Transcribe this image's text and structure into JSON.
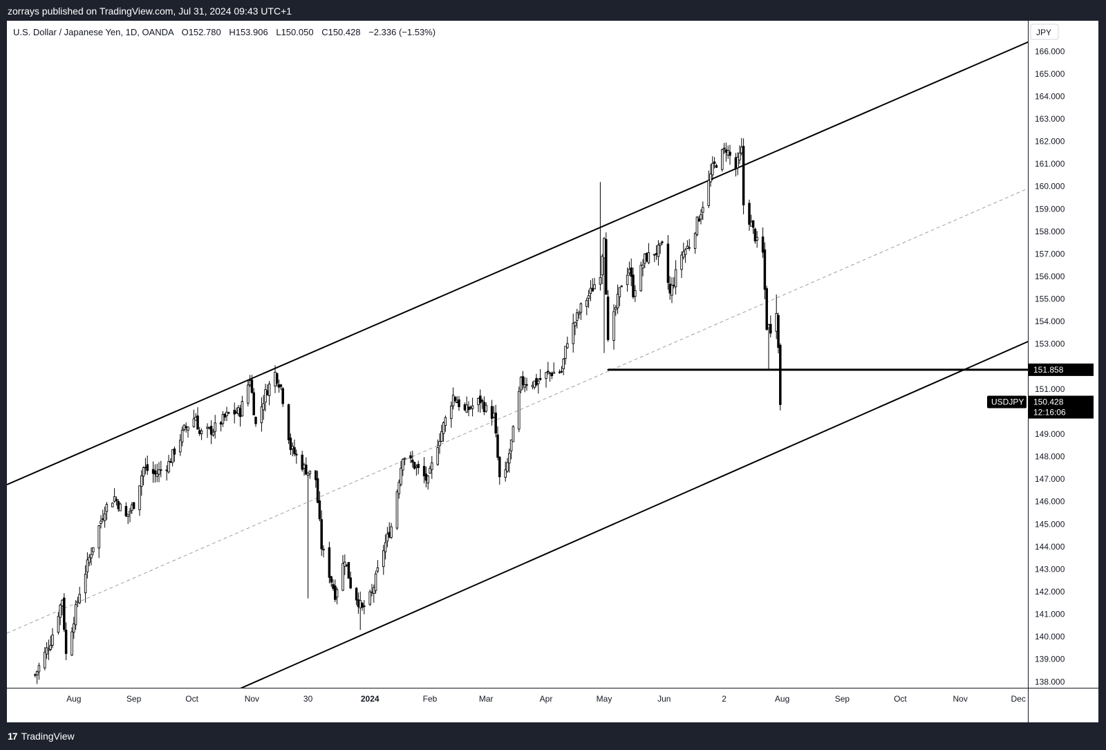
{
  "publisher_line": "zorrays published on TradingView.com, Jul 31, 2024 09:43 UTC+1",
  "footer": {
    "logo": "17",
    "brand": "TradingView"
  },
  "legend": {
    "symbol_desc": "U.S. Dollar / Japanese Yen, 1D, OANDA",
    "open": "O152.780",
    "high": "H153.906",
    "low": "L150.050",
    "close": "C150.428",
    "change": "−2.336 (−1.53%)"
  },
  "currency": "JPY",
  "price_labels": {
    "level": "151.858",
    "symbol": "USDJPY",
    "last": "150.428",
    "countdown": "12:16:06"
  },
  "colors": {
    "background": "#ffffff",
    "frame": "#1e222d",
    "candle": "#000000",
    "channel": "#000000",
    "midline": "#9e9e9e"
  },
  "chart_data": {
    "type": "candlestick",
    "title": "U.S. Dollar / Japanese Yen, 1D, OANDA",
    "ylim": [
      137.7,
      166.9
    ],
    "y_ticks": [
      "138.000",
      "139.000",
      "140.000",
      "141.000",
      "142.000",
      "143.000",
      "144.000",
      "145.000",
      "146.000",
      "147.000",
      "148.000",
      "149.000",
      "150.000",
      "151.000",
      "152.000",
      "153.000",
      "154.000",
      "155.000",
      "156.000",
      "157.000",
      "158.000",
      "159.000",
      "160.000",
      "161.000",
      "162.000",
      "163.000",
      "164.000",
      "165.000",
      "166.000"
    ],
    "x_ticks": [
      {
        "label": "Aug",
        "date": "2023-08-01",
        "bold": false
      },
      {
        "label": "Sep",
        "date": "2023-09-01",
        "bold": false
      },
      {
        "label": "Oct",
        "date": "2023-10-01",
        "bold": false
      },
      {
        "label": "Nov",
        "date": "2023-11-01",
        "bold": false
      },
      {
        "label": "30",
        "date": "2023-11-30",
        "bold": false
      },
      {
        "label": "2024",
        "date": "2024-01-01",
        "bold": true
      },
      {
        "label": "Feb",
        "date": "2024-02-01",
        "bold": false
      },
      {
        "label": "Mar",
        "date": "2024-03-01",
        "bold": false
      },
      {
        "label": "Apr",
        "date": "2024-04-01",
        "bold": false
      },
      {
        "label": "May",
        "date": "2024-05-01",
        "bold": false
      },
      {
        "label": "Jun",
        "date": "2024-06-01",
        "bold": false
      },
      {
        "label": "2",
        "date": "2024-07-02",
        "bold": false
      },
      {
        "label": "Aug",
        "date": "2024-08-01",
        "bold": false
      },
      {
        "label": "Sep",
        "date": "2024-09-01",
        "bold": false
      },
      {
        "label": "Oct",
        "date": "2024-10-01",
        "bold": false
      },
      {
        "label": "Nov",
        "date": "2024-11-01",
        "bold": false
      },
      {
        "label": "Dec",
        "date": "2024-12-01",
        "bold": false
      }
    ],
    "price_path": [
      [
        "2023-07-12",
        138.3
      ],
      [
        "2023-07-20",
        139.8
      ],
      [
        "2023-07-26",
        141.7
      ],
      [
        "2023-07-28",
        139.2
      ],
      [
        "2023-08-04",
        142.0
      ],
      [
        "2023-08-10",
        143.8
      ],
      [
        "2023-08-17",
        145.7
      ],
      [
        "2023-08-22",
        146.2
      ],
      [
        "2023-08-28",
        145.3
      ],
      [
        "2023-09-01",
        145.9
      ],
      [
        "2023-09-06",
        147.5
      ],
      [
        "2023-09-12",
        147.2
      ],
      [
        "2023-09-19",
        147.7
      ],
      [
        "2023-09-27",
        149.2
      ],
      [
        "2023-10-03",
        149.8
      ],
      [
        "2023-10-05",
        149.0
      ],
      [
        "2023-10-12",
        149.2
      ],
      [
        "2023-10-20",
        149.9
      ],
      [
        "2023-10-26",
        150.0
      ],
      [
        "2023-10-31",
        151.5
      ],
      [
        "2023-11-03",
        149.4
      ],
      [
        "2023-11-08",
        150.8
      ],
      [
        "2023-11-13",
        151.7
      ],
      [
        "2023-11-16",
        151.1
      ],
      [
        "2023-11-21",
        148.4
      ],
      [
        "2023-11-28",
        147.5
      ],
      [
        "2023-12-04",
        147.0
      ],
      [
        "2023-12-07",
        144.0
      ],
      [
        "2023-12-14",
        141.9
      ],
      [
        "2023-12-19",
        143.5
      ],
      [
        "2023-12-22",
        142.3
      ],
      [
        "2023-12-28",
        141.2
      ],
      [
        "2024-01-02",
        141.9
      ],
      [
        "2024-01-08",
        143.9
      ],
      [
        "2024-01-12",
        144.9
      ],
      [
        "2024-01-18",
        148.1
      ],
      [
        "2024-01-24",
        147.6
      ],
      [
        "2024-01-31",
        146.9
      ],
      [
        "2024-02-05",
        148.6
      ],
      [
        "2024-02-13",
        150.7
      ],
      [
        "2024-02-19",
        150.0
      ],
      [
        "2024-02-27",
        150.5
      ],
      [
        "2024-03-01",
        150.1
      ],
      [
        "2024-03-05",
        149.8
      ],
      [
        "2024-03-08",
        147.0
      ],
      [
        "2024-03-11",
        147.2
      ],
      [
        "2024-03-15",
        149.1
      ],
      [
        "2024-03-19",
        151.3
      ],
      [
        "2024-03-27",
        151.3
      ],
      [
        "2024-04-02",
        151.7
      ],
      [
        "2024-04-09",
        151.8
      ],
      [
        "2024-04-12",
        153.2
      ],
      [
        "2024-04-19",
        154.6
      ],
      [
        "2024-04-24",
        155.3
      ],
      [
        "2024-04-29",
        156.2
      ],
      [
        "2024-05-01",
        157.9
      ],
      [
        "2024-05-03",
        153.0
      ],
      [
        "2024-05-07",
        154.6
      ],
      [
        "2024-05-10",
        155.7
      ],
      [
        "2024-05-14",
        156.4
      ],
      [
        "2024-05-16",
        155.3
      ],
      [
        "2024-05-22",
        156.8
      ],
      [
        "2024-05-28",
        157.1
      ],
      [
        "2024-05-31",
        157.3
      ],
      [
        "2024-06-04",
        155.2
      ],
      [
        "2024-06-10",
        157.0
      ],
      [
        "2024-06-14",
        157.4
      ],
      [
        "2024-06-20",
        158.9
      ],
      [
        "2024-06-26",
        160.8
      ],
      [
        "2024-07-03",
        161.7
      ],
      [
        "2024-07-08",
        160.8
      ],
      [
        "2024-07-11",
        161.6
      ],
      [
        "2024-07-12",
        159.2
      ],
      [
        "2024-07-16",
        158.3
      ],
      [
        "2024-07-19",
        157.5
      ],
      [
        "2024-07-22",
        157.0
      ],
      [
        "2024-07-24",
        153.8
      ],
      [
        "2024-07-26",
        153.7
      ],
      [
        "2024-07-29",
        154.6
      ],
      [
        "2024-07-30",
        152.8
      ],
      [
        "2024-07-31",
        150.4
      ]
    ],
    "spikes": [
      {
        "date": "2024-04-29",
        "high": 160.2
      },
      {
        "date": "2024-05-01",
        "low": 152.6
      },
      {
        "date": "2023-11-30",
        "low": 141.7
      },
      {
        "date": "2023-12-27",
        "low": 140.3
      },
      {
        "date": "2024-07-25",
        "low": 151.9
      },
      {
        "date": "2024-07-31",
        "low": 150.05
      },
      {
        "date": "2024-07-29",
        "high": 155.2
      },
      {
        "date": "2024-07-03",
        "high": 161.95
      }
    ],
    "channel_upper": [
      [
        "2023-07-12",
        147.3
      ],
      [
        "2024-12-11",
        166.6
      ]
    ],
    "channel_lower": [
      [
        "2023-10-26",
        137.7
      ],
      [
        "2024-12-11",
        153.3
      ]
    ],
    "channel_mid": [
      [
        "2023-07-12",
        140.7
      ],
      [
        "2024-12-11",
        160.1
      ]
    ],
    "horizontal_level": {
      "start": "2024-05-03",
      "end_date": "2024-12-11",
      "value": 151.858
    },
    "last_price": 150.428
  }
}
